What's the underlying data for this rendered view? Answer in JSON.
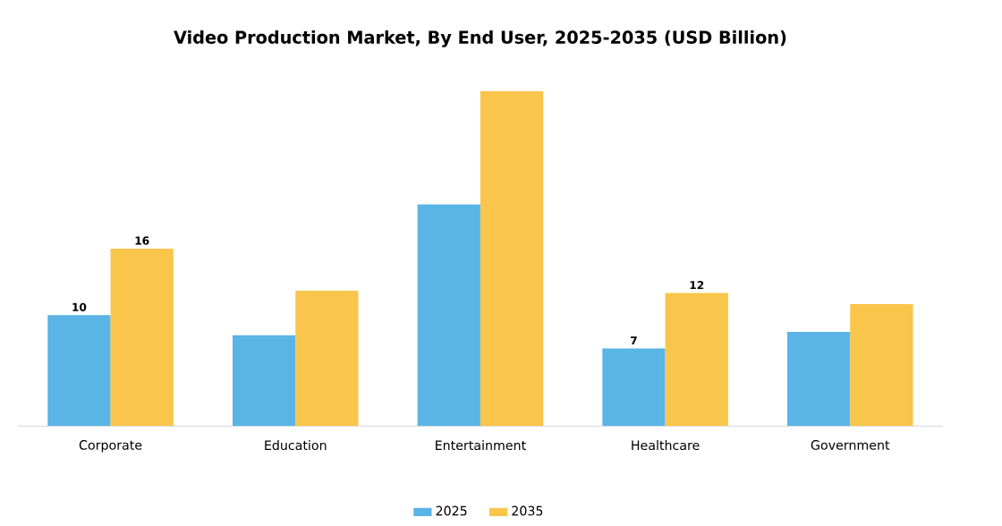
{
  "chart_data": {
    "type": "bar",
    "title": "Video Production Market, By End User, 2025-2035 (USD Billion)",
    "categories": [
      "Corporate",
      "Education",
      "Entertainment",
      "Healthcare",
      "Government"
    ],
    "series": [
      {
        "name": "2025",
        "color": "#5ab4e6",
        "values": [
          10,
          8.2,
          20,
          7,
          8.5
        ],
        "value_labels": [
          "10",
          null,
          null,
          "7",
          null
        ]
      },
      {
        "name": "2035",
        "color": "#f9c54b",
        "values": [
          16,
          12.2,
          30.2,
          12,
          11
        ],
        "value_labels": [
          "16",
          null,
          null,
          "12",
          null
        ]
      }
    ],
    "legend": "bottom"
  }
}
